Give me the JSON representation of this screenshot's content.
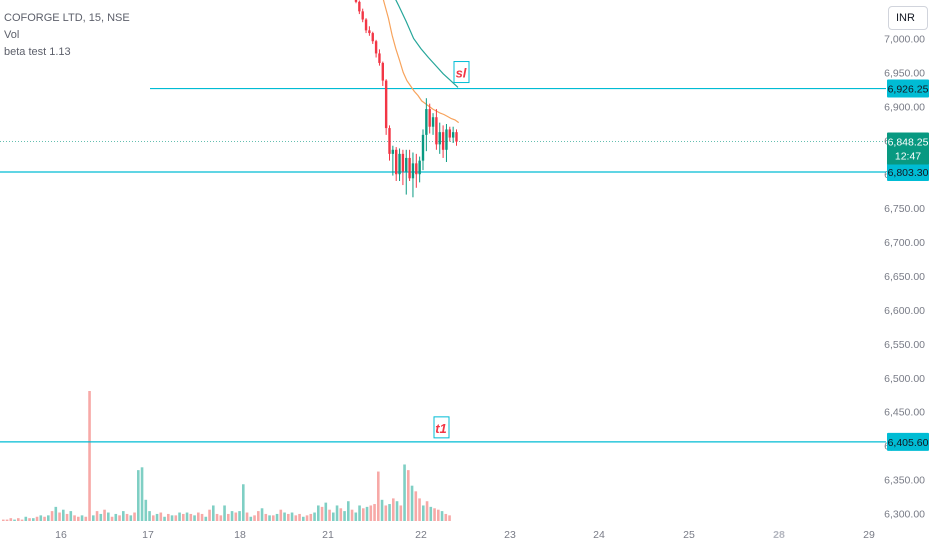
{
  "header": {
    "symbol_line": "COFORGE LTD, 15, NSE",
    "indicator_1": "Vol",
    "indicator_2": "beta test 1.13"
  },
  "currency_button": {
    "label": "INR"
  },
  "chart_data": {
    "type": "candlestick",
    "x_tick_labels": [
      "16",
      "17",
      "18",
      "21",
      "22",
      "23",
      "24",
      "25",
      "28",
      "29"
    ],
    "y_tick_labels": [
      "7,000.00",
      "6,950.00",
      "6,900.00",
      "6,850.00",
      "6,800.00",
      "6,750.00",
      "6,700.00",
      "6,650.00",
      "6,600.00",
      "6,550.00",
      "6,500.00",
      "6,450.00",
      "6,400.00",
      "6,350.00",
      "6,300.00"
    ],
    "ylim": [
      6296,
      7055
    ],
    "current_price": {
      "label": "6,848.25",
      "value": 6848.25,
      "countdown": "12:47",
      "color": "#089981"
    },
    "horizontal_levels": [
      {
        "value": 6926.25,
        "label": "6,926.25",
        "annotation": "sl",
        "color": "#00bcd4"
      },
      {
        "value": 6803.3,
        "label": "6,803.30",
        "annotation": "",
        "color": "#00bcd4"
      },
      {
        "value": 6405.6,
        "label": "6,405.60",
        "annotation": "t1",
        "color": "#00bcd4"
      }
    ],
    "candles": [
      [
        7060,
        7062,
        7052,
        7054
      ],
      [
        7054,
        7056,
        7036,
        7040
      ],
      [
        7040,
        7044,
        7024,
        7028
      ],
      [
        7028,
        7030,
        7008,
        7012
      ],
      [
        7012,
        7018,
        7004,
        7008
      ],
      [
        7008,
        7010,
        6992,
        6996
      ],
      [
        6996,
        6998,
        6972,
        6978
      ],
      [
        6978,
        6984,
        6960,
        6964
      ],
      [
        6964,
        6966,
        6930,
        6938
      ],
      [
        6938,
        6940,
        6858,
        6868
      ],
      [
        6868,
        6872,
        6820,
        6830
      ],
      [
        6830,
        6842,
        6798,
        6836
      ],
      [
        6836,
        6840,
        6790,
        6800
      ],
      [
        6800,
        6838,
        6790,
        6830
      ],
      [
        6830,
        6836,
        6784,
        6804
      ],
      [
        6804,
        6836,
        6770,
        6824
      ],
      [
        6824,
        6836,
        6790,
        6794
      ],
      [
        6794,
        6832,
        6766,
        6816
      ],
      [
        6816,
        6830,
        6780,
        6800
      ],
      [
        6800,
        6826,
        6788,
        6820
      ],
      [
        6820,
        6866,
        6806,
        6858
      ],
      [
        6858,
        6912,
        6834,
        6896
      ],
      [
        6896,
        6904,
        6860,
        6870
      ],
      [
        6870,
        6890,
        6858,
        6884
      ],
      [
        6884,
        6896,
        6836,
        6844
      ],
      [
        6844,
        6876,
        6830,
        6862
      ],
      [
        6862,
        6872,
        6824,
        6836
      ],
      [
        6836,
        6874,
        6818,
        6866
      ],
      [
        6866,
        6870,
        6848,
        6854
      ],
      [
        6854,
        6870,
        6846,
        6862
      ],
      [
        6862,
        6866,
        6842,
        6848
      ]
    ],
    "moving_averages": [
      {
        "name": "",
        "color": "#f7a35c",
        "values": [
          7070,
          7050,
          7030,
          7005,
          6985,
          6968,
          6950,
          6938,
          6930,
          6922,
          6916,
          6908,
          6904,
          6900,
          6896,
          6893,
          6890,
          6888,
          6885,
          6882,
          6880,
          6876
        ]
      },
      {
        "name": "",
        "color": "#26a69a",
        "values": [
          7090,
          7070,
          7048,
          7025,
          7000,
          6985,
          6972,
          6960,
          6948,
          6938,
          6928
        ]
      }
    ],
    "volume_bars": [
      [
        1,
        0
      ],
      [
        1,
        0
      ],
      [
        2,
        0
      ],
      [
        1,
        1
      ],
      [
        2,
        0
      ],
      [
        1,
        0
      ],
      [
        3,
        1
      ],
      [
        2,
        0
      ],
      [
        2,
        1
      ],
      [
        3,
        0
      ],
      [
        4,
        1
      ],
      [
        3,
        0
      ],
      [
        4,
        1
      ],
      [
        7,
        0
      ],
      [
        10,
        1
      ],
      [
        6,
        0
      ],
      [
        8,
        1
      ],
      [
        5,
        0
      ],
      [
        7,
        1
      ],
      [
        4,
        0
      ],
      [
        3,
        0
      ],
      [
        4,
        1
      ],
      [
        3,
        0
      ],
      [
        92,
        0
      ],
      [
        4,
        1
      ],
      [
        7,
        0
      ],
      [
        5,
        1
      ],
      [
        8,
        0
      ],
      [
        6,
        1
      ],
      [
        3,
        0
      ],
      [
        5,
        1
      ],
      [
        4,
        0
      ],
      [
        7,
        1
      ],
      [
        5,
        0
      ],
      [
        4,
        1
      ],
      [
        6,
        0
      ],
      [
        36,
        1
      ],
      [
        38,
        1
      ],
      [
        15,
        1
      ],
      [
        7,
        1
      ],
      [
        4,
        0
      ],
      [
        5,
        1
      ],
      [
        6,
        0
      ],
      [
        3,
        1
      ],
      [
        5,
        0
      ],
      [
        4,
        1
      ],
      [
        4,
        0
      ],
      [
        6,
        1
      ],
      [
        5,
        0
      ],
      [
        6,
        1
      ],
      [
        5,
        0
      ],
      [
        4,
        1
      ],
      [
        6,
        0
      ],
      [
        5,
        0
      ],
      [
        3,
        1
      ],
      [
        8,
        0
      ],
      [
        11,
        1
      ],
      [
        5,
        0
      ],
      [
        4,
        0
      ],
      [
        11,
        1
      ],
      [
        5,
        0
      ],
      [
        7,
        1
      ],
      [
        6,
        0
      ],
      [
        7,
        1
      ],
      [
        26,
        1
      ],
      [
        6,
        0
      ],
      [
        3,
        1
      ],
      [
        4,
        0
      ],
      [
        7,
        0
      ],
      [
        9,
        1
      ],
      [
        5,
        0
      ],
      [
        4,
        1
      ],
      [
        4,
        0
      ],
      [
        5,
        1
      ],
      [
        8,
        0
      ],
      [
        6,
        1
      ],
      [
        5,
        0
      ],
      [
        6,
        1
      ],
      [
        4,
        0
      ],
      [
        5,
        0
      ],
      [
        3,
        1
      ],
      [
        4,
        0
      ],
      [
        5,
        0
      ],
      [
        6,
        1
      ],
      [
        11,
        1
      ],
      [
        10,
        0
      ],
      [
        13,
        1
      ],
      [
        8,
        0
      ],
      [
        6,
        1
      ],
      [
        11,
        1
      ],
      [
        9,
        0
      ],
      [
        7,
        1
      ],
      [
        14,
        1
      ],
      [
        8,
        0
      ],
      [
        6,
        1
      ],
      [
        11,
        1
      ],
      [
        9,
        0
      ],
      [
        10,
        1
      ],
      [
        11,
        0
      ],
      [
        12,
        0
      ],
      [
        35,
        0
      ],
      [
        15,
        1
      ],
      [
        11,
        0
      ],
      [
        12,
        1
      ],
      [
        16,
        0
      ],
      [
        14,
        1
      ],
      [
        11,
        0
      ],
      [
        40,
        1
      ],
      [
        36,
        0
      ],
      [
        25,
        1
      ],
      [
        21,
        0
      ],
      [
        16,
        0
      ],
      [
        11,
        1
      ],
      [
        14,
        0
      ],
      [
        10,
        1
      ],
      [
        9,
        0
      ],
      [
        8,
        0
      ],
      [
        7,
        1
      ],
      [
        5,
        0
      ],
      [
        4,
        0
      ]
    ],
    "up_color": "#089981",
    "down_color": "#f23645",
    "up_volume_color": "#7fcfc4",
    "down_volume_color": "#f7a9a7"
  }
}
